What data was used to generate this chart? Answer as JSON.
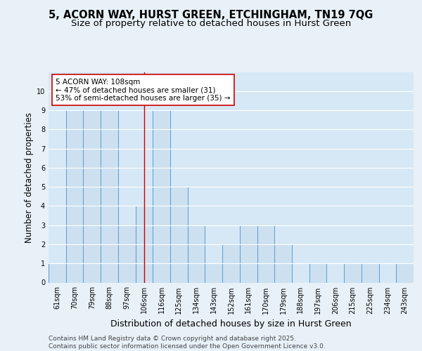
{
  "title_line1": "5, ACORN WAY, HURST GREEN, ETCHINGHAM, TN19 7QG",
  "title_line2": "Size of property relative to detached houses in Hurst Green",
  "xlabel": "Distribution of detached houses by size in Hurst Green",
  "ylabel": "Number of detached properties",
  "categories": [
    "61sqm",
    "70sqm",
    "79sqm",
    "88sqm",
    "97sqm",
    "106sqm",
    "116sqm",
    "125sqm",
    "134sqm",
    "143sqm",
    "152sqm",
    "161sqm",
    "170sqm",
    "179sqm",
    "188sqm",
    "197sqm",
    "206sqm",
    "215sqm",
    "225sqm",
    "234sqm",
    "243sqm"
  ],
  "values": [
    1,
    9,
    9,
    9,
    3,
    4,
    9,
    5,
    3,
    1,
    2,
    3,
    3,
    2,
    0,
    1,
    0,
    1,
    1,
    0,
    1
  ],
  "bar_color": "#cce0f0",
  "bar_edge_color": "#5b9bd5",
  "highlight_index": 5,
  "highlight_line_color": "#cc0000",
  "annotation_text": "5 ACORN WAY: 108sqm\n← 47% of detached houses are smaller (31)\n53% of semi-detached houses are larger (35) →",
  "annotation_box_facecolor": "#ffffff",
  "annotation_box_edgecolor": "#cc0000",
  "ylim": [
    0,
    11
  ],
  "yticks": [
    0,
    1,
    2,
    3,
    4,
    5,
    6,
    7,
    8,
    9,
    10
  ],
  "grid_color": "#ffffff",
  "plot_bg_color": "#d6e8f5",
  "fig_bg_color": "#e8f1f8",
  "footer_text": "Contains HM Land Registry data © Crown copyright and database right 2025.\nContains public sector information licensed under the Open Government Licence v3.0.",
  "title_fontsize": 10.5,
  "subtitle_fontsize": 9.5,
  "axis_ylabel_fontsize": 8.5,
  "axis_xlabel_fontsize": 9,
  "tick_fontsize": 7,
  "annotation_fontsize": 7.5,
  "footer_fontsize": 6.5
}
